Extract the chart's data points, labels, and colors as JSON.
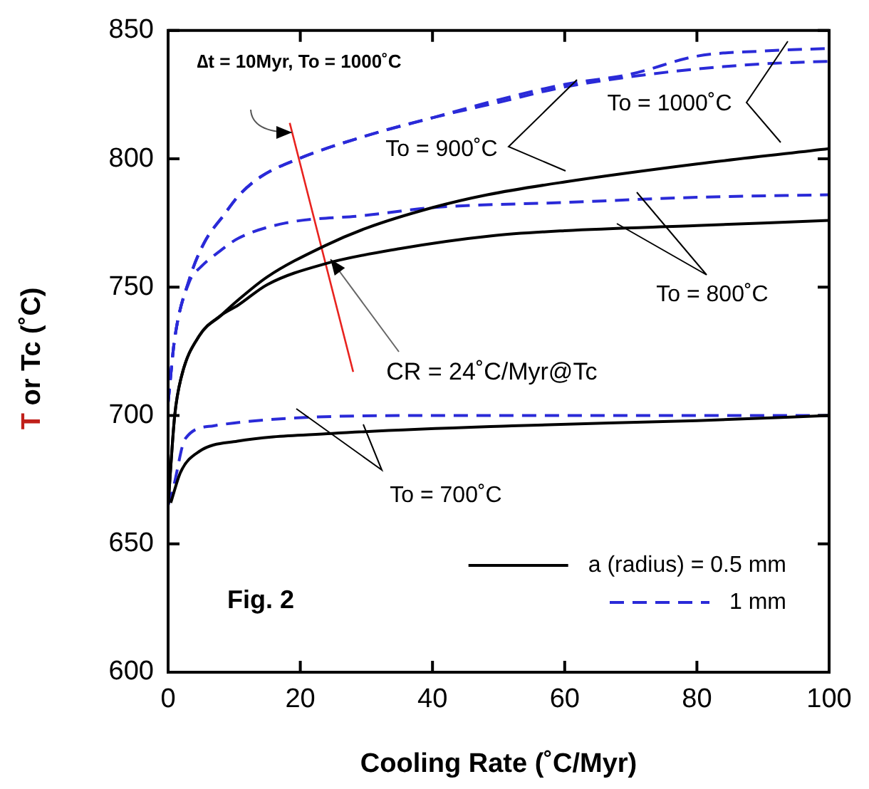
{
  "chart_data": {
    "type": "line",
    "xlabel": "Cooling Rate (˚C/Myr)",
    "ylabel": "T or Tc (˚C)",
    "xlim": [
      0,
      100
    ],
    "xticks": [
      0,
      20,
      40,
      60,
      80,
      100
    ],
    "ylim": [
      600,
      850
    ],
    "yticks": [
      600,
      650,
      700,
      750,
      800,
      850
    ],
    "legend": "bottom right",
    "marker": "none",
    "series": [
      {
        "name": "a (radius) = 0.5 mm",
        "color": "#000000",
        "line_style": "solid",
        "x": [
          0,
          1,
          2,
          4.7,
          8,
          10.6,
          15,
          23.6,
          30,
          40,
          48.3,
          60,
          80,
          100
        ],
        "values": [
          665,
          700,
          715,
          731,
          739,
          745,
          754,
          766,
          773,
          781,
          786,
          791,
          798,
          804
        ]
      },
      {
        "color": "#000000",
        "line_style": "solid",
        "x": [
          0,
          1,
          2,
          4.7,
          8,
          10.6,
          15,
          23.6,
          35,
          48.9,
          60,
          80,
          100
        ],
        "values": [
          665,
          700,
          715,
          731,
          739,
          743,
          751,
          759,
          765,
          770,
          772,
          774,
          776
        ]
      },
      {
        "color": "#000000",
        "line_style": "solid",
        "x": [
          0.4,
          1.9,
          4.7,
          10.5,
          24.8,
          52,
          80,
          100
        ],
        "values": [
          666,
          678,
          686,
          690,
          693,
          696,
          698,
          700
        ]
      },
      {
        "name": "1 mm",
        "color": "#2a2ad8",
        "line_style": "dashed",
        "x": [
          0,
          1,
          3.2,
          5.4,
          8.4,
          10.8,
          14,
          19.7,
          30,
          40,
          50,
          60,
          70,
          80,
          90,
          100
        ],
        "values": [
          705,
          730,
          753,
          767,
          778,
          786,
          793,
          800,
          809,
          816,
          823,
          829,
          833,
          840,
          842,
          843
        ]
      },
      {
        "color": "#2a2ad8",
        "line_style": "dashed",
        "x": [
          0,
          1,
          3.2,
          5.4,
          8.4,
          10.8,
          14,
          19.7,
          30,
          40,
          50,
          60,
          70,
          80,
          90,
          100
        ],
        "values": [
          705,
          730,
          753,
          767,
          778,
          786,
          793,
          800,
          809,
          816,
          822,
          828,
          832,
          835,
          837,
          838
        ]
      },
      {
        "color": "#2a2ad8",
        "line_style": "dashed",
        "x": [
          0,
          1,
          3.2,
          5,
          7.8,
          10.6,
          17.8,
          30,
          40,
          60,
          80,
          100
        ],
        "values": [
          705,
          730,
          752,
          758,
          764,
          769,
          775,
          778,
          781,
          783,
          785,
          786
        ]
      },
      {
        "color": "#2a2ad8",
        "line_style": "dashed",
        "x": [
          0,
          0.8,
          2.6,
          6.9,
          19,
          40,
          100
        ],
        "values": [
          665,
          672,
          691,
          696,
          699,
          700,
          700
        ]
      },
      {
        "color": "#e8231f",
        "line_style": "solid",
        "x": [
          18.4,
          28
        ],
        "values": [
          814,
          717
        ]
      }
    ],
    "annotations": [
      "∆t = 10Myr, To = 1000˚C",
      "To = 900˚C",
      "To = 1000˚C",
      "To = 800˚C",
      "To = 700˚C",
      {
        "text": "CR = 24˚C/Myr@Tc",
        "x": 24.6,
        "y": 761
      },
      "Fig. 2"
    ]
  }
}
